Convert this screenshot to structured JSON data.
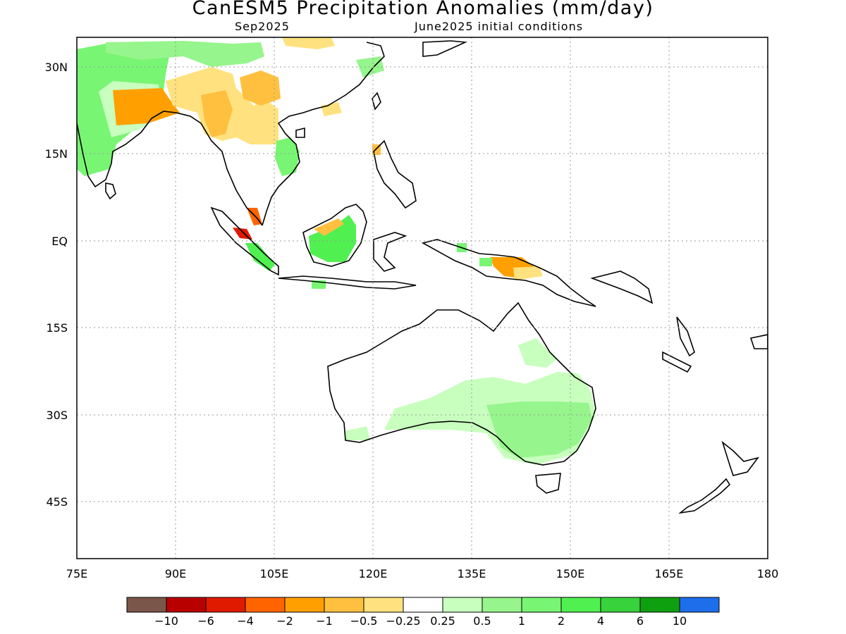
{
  "title": "CanESM5 Precipitation Anomalies (mm/day)",
  "subtitle_left": "Sep2025",
  "subtitle_right": "June2025 initial conditions",
  "map": {
    "lon_range": [
      75,
      180
    ],
    "lat_range": [
      -55,
      35
    ],
    "lon_ticks": [
      "75E",
      "90E",
      "105E",
      "120E",
      "135E",
      "150E",
      "165E",
      "180"
    ],
    "lat_ticks": [
      "30N",
      "15N",
      "EQ",
      "15S",
      "30S",
      "45S"
    ],
    "grid": "dotted"
  },
  "colorbar": {
    "colors": [
      "#7a5549",
      "#b80000",
      "#e01a00",
      "#ff6400",
      "#ffa000",
      "#ffc040",
      "#ffe27f",
      "#ffffff",
      "#c8ffbe",
      "#96f58c",
      "#78f573",
      "#50f050",
      "#37d23c",
      "#0fa00f",
      "#1e6eeb"
    ],
    "labels": [
      "−10",
      "−6",
      "−4",
      "−2",
      "−1",
      "−0.5",
      "−0.25",
      "0.25",
      "0.5",
      "1",
      "2",
      "4",
      "6",
      "10"
    ]
  }
}
